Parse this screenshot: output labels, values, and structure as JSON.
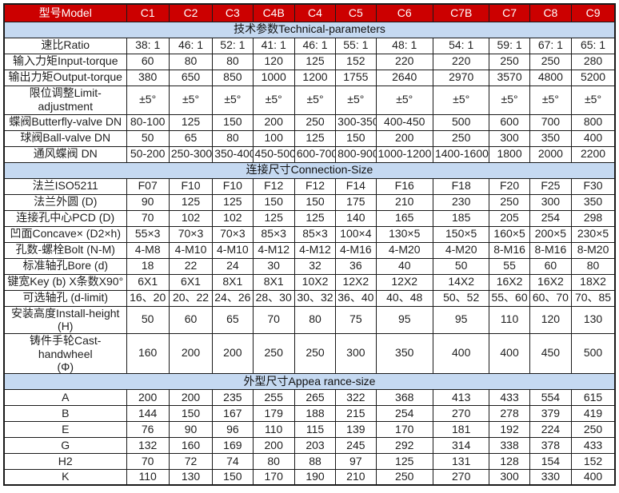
{
  "colors": {
    "header_bg": "#CC0000",
    "header_text": "#FFFFFF",
    "section_bg": "#C5D9F1",
    "border": "#1A1A1A",
    "text": "#1F1F1F"
  },
  "table": {
    "model_header": {
      "label": "型号Model",
      "models": [
        "C1",
        "C2",
        "C3",
        "C4B",
        "C4",
        "C5",
        "C6",
        "C7B",
        "C7",
        "C8",
        "C9"
      ]
    },
    "sections": [
      {
        "title": "技术参数Technical-parameters",
        "rows": [
          {
            "label": "速比Ratio",
            "values": [
              "38: 1",
              "46: 1",
              "52: 1",
              "41: 1",
              "46: 1",
              "55: 1",
              "48: 1",
              "54: 1",
              "59: 1",
              "67: 1",
              "65: 1"
            ]
          },
          {
            "label": "输入力矩Input-torque",
            "values": [
              "60",
              "80",
              "80",
              "120",
              "125",
              "152",
              "220",
              "220",
              "250",
              "250",
              "280"
            ]
          },
          {
            "label": "输出力矩Output-torque",
            "values": [
              "380",
              "650",
              "850",
              "1000",
              "1200",
              "1755",
              "2640",
              "2970",
              "3570",
              "4800",
              "5200"
            ]
          },
          {
            "label": "限位调整Limit-adjustment",
            "values": [
              "±5°",
              "±5°",
              "±5°",
              "±5°",
              "±5°",
              "±5°",
              "±5°",
              "±5°",
              "±5°",
              "±5°",
              "±5°"
            ]
          },
          {
            "label": "蝶阀Butterfly-valve DN",
            "values": [
              "80-100",
              "125",
              "150",
              "200",
              "250",
              "300-350",
              "400-450",
              "500",
              "600",
              "700",
              "800"
            ]
          },
          {
            "label": "球阀Ball-valve DN",
            "values": [
              "50",
              "65",
              "80",
              "100",
              "125",
              "150",
              "200",
              "250",
              "300",
              "350",
              "400"
            ]
          },
          {
            "label": "通风蝶阀  DN",
            "values": [
              "50-200",
              "250-300",
              "350-400",
              "450-500",
              "600-700",
              "800-900",
              "1000-1200",
              "1400-1600",
              "1800",
              "2000",
              "2200"
            ]
          }
        ]
      },
      {
        "title": "连接尺寸Connection-Size",
        "rows": [
          {
            "label": "法兰ISO5211",
            "values": [
              "F07",
              "F10",
              "F10",
              "F12",
              "F12",
              "F14",
              "F16",
              "F18",
              "F20",
              "F25",
              "F30"
            ]
          },
          {
            "label": "法兰外圆 (D)",
            "values": [
              "90",
              "125",
              "125",
              "150",
              "150",
              "175",
              "210",
              "230",
              "250",
              "300",
              "350"
            ]
          },
          {
            "label": "连接孔中心PCD (D)",
            "values": [
              "70",
              "102",
              "102",
              "125",
              "125",
              "140",
              "165",
              "185",
              "205",
              "254",
              "298"
            ]
          },
          {
            "label": "凹面Concave× (D2×h)",
            "values": [
              "55×3",
              "70×3",
              "70×3",
              "85×3",
              "85×3",
              "100×4",
              "130×5",
              "150×5",
              "160×5",
              "200×5",
              "230×5"
            ]
          },
          {
            "label": "孔数-螺栓Bolt (N-M)",
            "values": [
              "4-M8",
              "4-M10",
              "4-M10",
              "4-M12",
              "4-M12",
              "4-M16",
              "4-M20",
              "4-M20",
              "8-M16",
              "8-M16",
              "8-M20"
            ]
          },
          {
            "label": "标准轴孔Bore (d)",
            "values": [
              "18",
              "22",
              "24",
              "30",
              "32",
              "36",
              "40",
              "50",
              "55",
              "60",
              "80"
            ]
          },
          {
            "label": "键宽Key (b) X条数X90°",
            "values": [
              "6X1",
              "6X1",
              "8X1",
              "8X1",
              "10X2",
              "12X2",
              "12X2",
              "14X2",
              "16X2",
              "16X2",
              "18X2"
            ]
          },
          {
            "label": "可选轴孔 (d-limit)",
            "values": [
              "16、20",
              "20、22",
              "24、26",
              "28、30",
              "30、32",
              "36、40",
              "40、48",
              "50、52",
              "55、60",
              "60、70",
              "70、85"
            ]
          },
          {
            "label": "安装高度Install-height",
            "label2": "(H)",
            "values": [
              "50",
              "60",
              "65",
              "70",
              "80",
              "75",
              "95",
              "95",
              "110",
              "120",
              "130"
            ]
          },
          {
            "label": "铸件手轮Cast-handwheel",
            "label2": "(Φ)",
            "values": [
              "160",
              "200",
              "200",
              "250",
              "250",
              "300",
              "350",
              "400",
              "400",
              "450",
              "500"
            ]
          }
        ]
      },
      {
        "title": "外型尺寸Appea rance-size",
        "rows": [
          {
            "label": "A",
            "values": [
              "200",
              "200",
              "235",
              "255",
              "265",
              "322",
              "368",
              "413",
              "433",
              "554",
              "615"
            ]
          },
          {
            "label": "B",
            "values": [
              "144",
              "150",
              "167",
              "179",
              "188",
              "215",
              "254",
              "270",
              "278",
              "379",
              "419"
            ]
          },
          {
            "label": "E",
            "values": [
              "76",
              "90",
              "96",
              "110",
              "115",
              "139",
              "170",
              "181",
              "192",
              "224",
              "250"
            ]
          },
          {
            "label": "G",
            "values": [
              "132",
              "160",
              "169",
              "200",
              "203",
              "245",
              "292",
              "314",
              "338",
              "378",
              "433"
            ]
          },
          {
            "label": "H2",
            "values": [
              "70",
              "72",
              "74",
              "80",
              "88",
              "97",
              "125",
              "131",
              "128",
              "154",
              "152"
            ]
          },
          {
            "label": "K",
            "values": [
              "110",
              "130",
              "150",
              "170",
              "190",
              "210",
              "250",
              "270",
              "300",
              "330",
              "400"
            ]
          }
        ]
      }
    ]
  }
}
